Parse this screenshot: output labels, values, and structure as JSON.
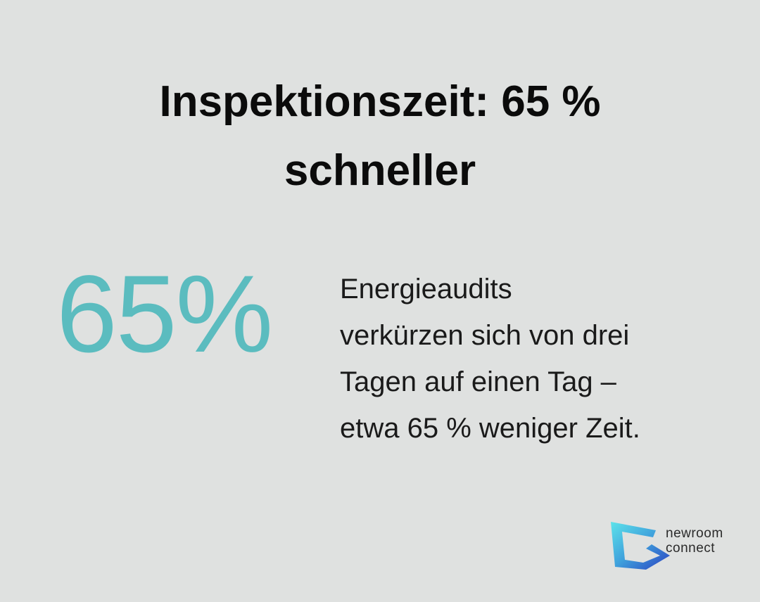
{
  "header": {
    "title_lines": [
      "Inspektionszeit: 65 %",
      "schneller"
    ]
  },
  "stat": {
    "value_text": "65%",
    "description_lines": [
      "Energieaudits",
      "verkürzen sich von drei",
      "Tagen auf einen Tag –",
      "etwa 65 % weniger Zeit."
    ]
  },
  "logo": {
    "lines": [
      "newroom",
      "connect"
    ]
  }
}
